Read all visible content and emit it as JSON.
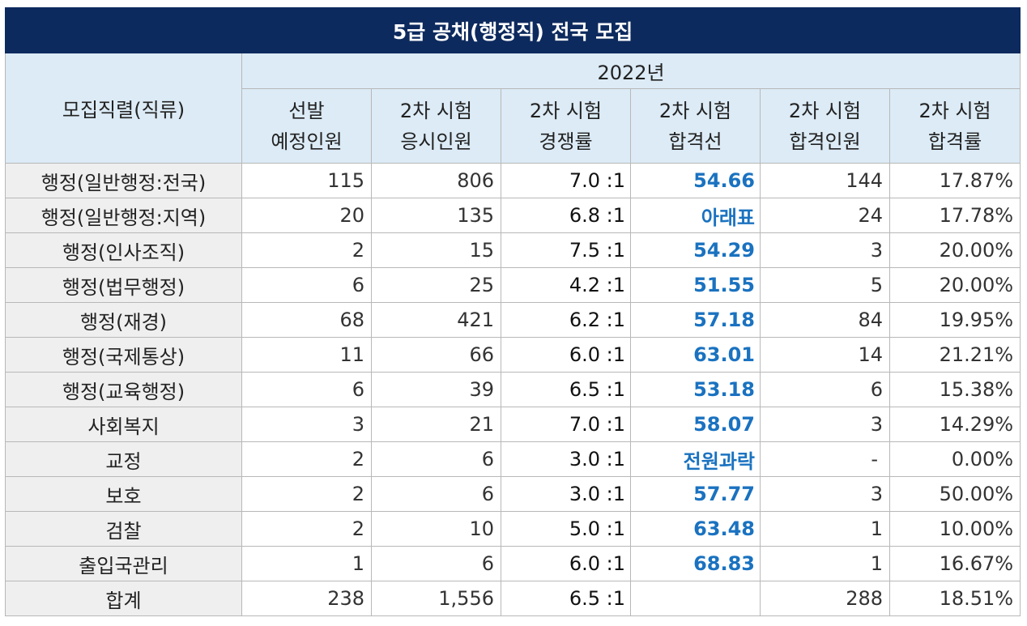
{
  "title": "5급 공채(행정직) 전국 모집",
  "header": {
    "category_label": "모집직렬(직류)",
    "year": "2022년",
    "columns": [
      {
        "line1": "선발",
        "line2": "예정인원"
      },
      {
        "line1": "2차 시험",
        "line2": "응시인원"
      },
      {
        "line1": "2차 시험",
        "line2": "경쟁률"
      },
      {
        "line1": "2차 시험",
        "line2": "합격선"
      },
      {
        "line1": "2차 시험",
        "line2": "합격인원"
      },
      {
        "line1": "2차 시험",
        "line2": "합격률"
      }
    ]
  },
  "rows": [
    {
      "category": "행정(일반행정:전국)",
      "planned": "115",
      "applicants": "806",
      "competition": "7.0 :1",
      "cutline": "54.66",
      "passers": "144",
      "pass_rate": "17.87%"
    },
    {
      "category": "행정(일반행정:지역)",
      "planned": "20",
      "applicants": "135",
      "competition": "6.8 :1",
      "cutline": "아래표",
      "passers": "24",
      "pass_rate": "17.78%"
    },
    {
      "category": "행정(인사조직)",
      "planned": "2",
      "applicants": "15",
      "competition": "7.5 :1",
      "cutline": "54.29",
      "passers": "3",
      "pass_rate": "20.00%"
    },
    {
      "category": "행정(법무행정)",
      "planned": "6",
      "applicants": "25",
      "competition": "4.2 :1",
      "cutline": "51.55",
      "passers": "5",
      "pass_rate": "20.00%"
    },
    {
      "category": "행정(재경)",
      "planned": "68",
      "applicants": "421",
      "competition": "6.2 :1",
      "cutline": "57.18",
      "passers": "84",
      "pass_rate": "19.95%"
    },
    {
      "category": "행정(국제통상)",
      "planned": "11",
      "applicants": "66",
      "competition": "6.0 :1",
      "cutline": "63.01",
      "passers": "14",
      "pass_rate": "21.21%"
    },
    {
      "category": "행정(교육행정)",
      "planned": "6",
      "applicants": "39",
      "competition": "6.5 :1",
      "cutline": "53.18",
      "passers": "6",
      "pass_rate": "15.38%"
    },
    {
      "category": "사회복지",
      "planned": "3",
      "applicants": "21",
      "competition": "7.0 :1",
      "cutline": "58.07",
      "passers": "3",
      "pass_rate": "14.29%"
    },
    {
      "category": "교정",
      "planned": "2",
      "applicants": "6",
      "competition": "3.0 :1",
      "cutline": "전원과락",
      "passers": "-",
      "pass_rate": "0.00%"
    },
    {
      "category": "보호",
      "planned": "2",
      "applicants": "6",
      "competition": "3.0 :1",
      "cutline": "57.77",
      "passers": "3",
      "pass_rate": "50.00%"
    },
    {
      "category": "검찰",
      "planned": "2",
      "applicants": "10",
      "competition": "5.0 :1",
      "cutline": "63.48",
      "passers": "1",
      "pass_rate": "10.00%"
    },
    {
      "category": "출입국관리",
      "planned": "1",
      "applicants": "6",
      "competition": "6.0 :1",
      "cutline": "68.83",
      "passers": "1",
      "pass_rate": "16.67%"
    },
    {
      "category": "합계",
      "planned": "238",
      "applicants": "1,556",
      "competition": "6.5 :1",
      "cutline": "",
      "passers": "288",
      "pass_rate": "18.51%"
    }
  ],
  "colors": {
    "title_bg": "#0d2a5e",
    "header_bg": "#dcebf6",
    "label_bg": "#efefef",
    "cutline_text": "#1a72c0"
  }
}
